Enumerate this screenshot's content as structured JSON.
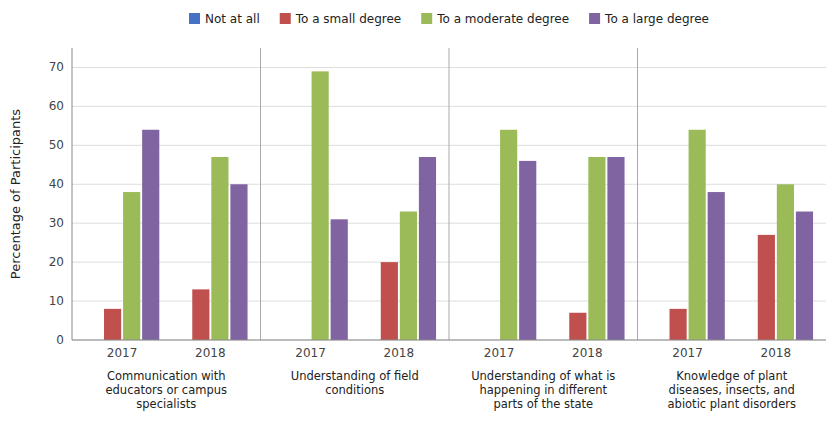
{
  "chart_data": [
    {
      "type": "bar",
      "title": "Communication with\neducators or campus\nspecialists",
      "ylabel": "Percentage of Participants",
      "categories": [
        "2017",
        "2018"
      ],
      "series": [
        {
          "name": "Not at all",
          "color": "#4472C4",
          "values": [
            0,
            0
          ]
        },
        {
          "name": "To a small degree",
          "color": "#C0504D",
          "values": [
            8,
            13
          ]
        },
        {
          "name": "To a moderate degree",
          "color": "#9BBB59",
          "values": [
            38,
            47
          ]
        },
        {
          "name": "To a large degree",
          "color": "#8064A2",
          "values": [
            54,
            40
          ]
        }
      ],
      "ylim": [
        0,
        75
      ],
      "yticks": [
        0,
        10,
        20,
        30,
        40,
        50,
        60,
        70
      ],
      "grid": true,
      "legend": "top"
    },
    {
      "type": "bar",
      "title": "Understanding of field\nconditions",
      "categories": [
        "2017",
        "2018"
      ],
      "series": [
        {
          "name": "Not at all",
          "color": "#4472C4",
          "values": [
            0,
            0
          ]
        },
        {
          "name": "To a small degree",
          "color": "#C0504D",
          "values": [
            0,
            20
          ]
        },
        {
          "name": "To a moderate degree",
          "color": "#9BBB59",
          "values": [
            69,
            33
          ]
        },
        {
          "name": "To a large degree",
          "color": "#8064A2",
          "values": [
            31,
            47
          ]
        }
      ],
      "ylim": [
        0,
        75
      ],
      "yticks": [
        0,
        10,
        20,
        30,
        40,
        50,
        60,
        70
      ],
      "grid": true,
      "tick_labels": "x"
    },
    {
      "type": "bar",
      "title": "Understanding of what is\nhappening in different\nparts of the state",
      "categories": [
        "2017",
        "2018"
      ],
      "series": [
        {
          "name": "Not at all",
          "color": "#4472C4",
          "values": [
            0,
            0
          ]
        },
        {
          "name": "To a small degree",
          "color": "#C0504D",
          "values": [
            0,
            7
          ]
        },
        {
          "name": "To a moderate degree",
          "color": "#9BBB59",
          "values": [
            54,
            47
          ]
        },
        {
          "name": "To a large degree",
          "color": "#8064A2",
          "values": [
            46,
            47
          ]
        }
      ],
      "ylim": [
        0,
        75
      ],
      "yticks": [
        0,
        10,
        20,
        30,
        40,
        50,
        60,
        70
      ],
      "grid": true,
      "tick_labels": "x"
    },
    {
      "type": "bar",
      "title": "Knowledge of plant\ndiseases, insects, and\nabiotic plant disorders",
      "categories": [
        "2017",
        "2018"
      ],
      "series": [
        {
          "name": "Not at all",
          "color": "#4472C4",
          "values": [
            0,
            0
          ]
        },
        {
          "name": "To a small degree",
          "color": "#C0504D",
          "values": [
            8,
            27
          ]
        },
        {
          "name": "To a moderate degree",
          "color": "#9BBB59",
          "values": [
            54,
            40
          ]
        },
        {
          "name": "To a large degree",
          "color": "#8064A2",
          "values": [
            38,
            33
          ]
        }
      ],
      "ylim": [
        0,
        75
      ],
      "yticks": [
        0,
        10,
        20,
        30,
        40,
        50,
        60,
        70
      ],
      "grid": true,
      "tick_labels": "x"
    }
  ]
}
